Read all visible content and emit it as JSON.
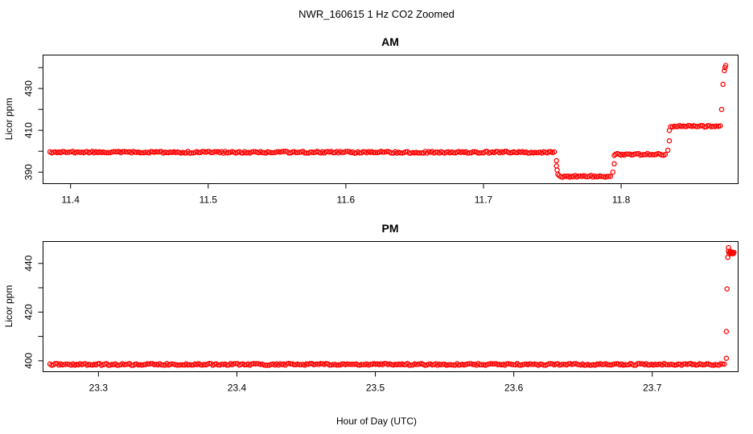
{
  "figure": {
    "title": "NWR_160615  1 Hz CO2 Zoomed",
    "xlabel": "Hour of Day (UTC)"
  },
  "chart_data": [
    {
      "type": "scatter",
      "title": "AM",
      "ylabel": "Licor ppm",
      "xlim": [
        11.38,
        11.885
      ],
      "ylim": [
        384.5,
        446
      ],
      "xticks": [
        11.4,
        11.5,
        11.6,
        11.7,
        11.8
      ],
      "xtick_labels": [
        "11.4",
        "11.5",
        "11.6",
        "11.7",
        "11.8"
      ],
      "yticks": [
        390,
        400,
        410,
        420,
        430,
        440
      ],
      "ytick_labels": [
        "390",
        "",
        "410",
        "",
        "430",
        ""
      ],
      "marker": "open-circle",
      "color": "#ff0000",
      "segments": [
        {
          "x_start": 11.385,
          "x_end": 11.752,
          "y": 399.5
        },
        {
          "x_start": 11.755,
          "x_end": 11.793,
          "y": 388.0
        },
        {
          "x_start": 11.796,
          "x_end": 11.833,
          "y": 398.5
        },
        {
          "x_start": 11.836,
          "x_end": 11.873,
          "y": 412.0
        }
      ],
      "points": [
        [
          11.753,
          395.5
        ],
        [
          11.753,
          393.0
        ],
        [
          11.7535,
          391.0
        ],
        [
          11.754,
          389.0
        ],
        [
          11.794,
          390.0
        ],
        [
          11.795,
          394.0
        ],
        [
          11.795,
          398.0
        ],
        [
          11.834,
          400.5
        ],
        [
          11.835,
          405.0
        ],
        [
          11.835,
          410.0
        ],
        [
          11.873,
          420.0
        ],
        [
          11.874,
          432.0
        ],
        [
          11.875,
          438.5
        ],
        [
          11.8755,
          440.0
        ],
        [
          11.876,
          441.0
        ]
      ]
    },
    {
      "type": "scatter",
      "title": "PM",
      "ylabel": "Licor ppm",
      "xlim": [
        23.26,
        23.762
      ],
      "ylim": [
        395.5,
        449
      ],
      "xticks": [
        23.3,
        23.4,
        23.5,
        23.6,
        23.7
      ],
      "xtick_labels": [
        "23.3",
        "23.4",
        "23.5",
        "23.6",
        "23.7"
      ],
      "yticks": [
        400,
        410,
        420,
        430,
        440
      ],
      "ytick_labels": [
        "400",
        "",
        "420",
        "",
        "440"
      ],
      "marker": "open-circle",
      "color": "#ff0000",
      "segments": [
        {
          "x_start": 23.265,
          "x_end": 23.753,
          "y": 398.5
        }
      ],
      "points": [
        [
          23.7535,
          401.0
        ],
        [
          23.7535,
          412.0
        ],
        [
          23.754,
          429.5
        ],
        [
          23.7545,
          442.5
        ],
        [
          23.755,
          446.5
        ],
        [
          23.755,
          445.0
        ],
        [
          23.7555,
          444.0
        ],
        [
          23.756,
          444.5
        ],
        [
          23.7565,
          445.0
        ],
        [
          23.757,
          444.0
        ],
        [
          23.7575,
          444.5
        ],
        [
          23.758,
          444.5
        ],
        [
          23.7585,
          444.0
        ],
        [
          23.759,
          444.5
        ]
      ]
    }
  ]
}
